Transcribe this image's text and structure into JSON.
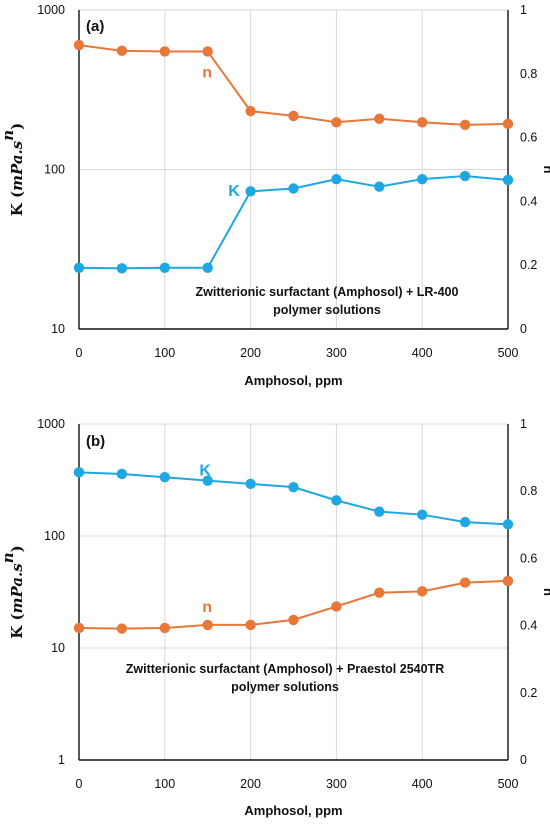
{
  "chart_data": [
    {
      "type": "line",
      "panel_label": "(a)",
      "x": [
        0,
        50,
        100,
        150,
        200,
        250,
        300,
        350,
        400,
        450,
        500
      ],
      "xlabel": "Amphosol, ppm",
      "xticks": [
        "0",
        "100",
        "200",
        "300",
        "400",
        "500"
      ],
      "xlim": [
        0,
        500
      ],
      "ylabel": {
        "prefix": "K (",
        "math": "mPa.s",
        "sup": "n",
        "suffix": ")"
      },
      "ylim": [
        10,
        1000
      ],
      "yscale": "log",
      "yticks": [
        "10",
        "100",
        "1000"
      ],
      "y2label": "n",
      "y2lim": [
        0,
        1
      ],
      "y2ticks": [
        "0",
        "0.2",
        "0.4",
        "0.6",
        "0.8",
        "1"
      ],
      "grid": true,
      "annotation": [
        "Zwitterionic surfactant (Amphosol) + LR-400",
        "polymer solutions"
      ],
      "series": [
        {
          "name": "K",
          "axis": "left",
          "color": "#1ea7e0",
          "values": [
            24.2,
            24.0,
            24.2,
            24.2,
            73,
            76,
            87,
            78,
            87,
            91,
            86
          ]
        },
        {
          "name": "n",
          "axis": "right",
          "color": "#e8773a",
          "values": [
            0.89,
            0.872,
            0.87,
            0.87,
            0.683,
            0.668,
            0.648,
            0.659,
            0.648,
            0.64,
            0.643
          ]
        }
      ]
    },
    {
      "type": "line",
      "panel_label": "(b)",
      "x": [
        0,
        50,
        100,
        150,
        200,
        250,
        300,
        350,
        400,
        450,
        500
      ],
      "xlabel": "Amphosol, ppm",
      "xticks": [
        "0",
        "100",
        "200",
        "300",
        "400",
        "500"
      ],
      "xlim": [
        0,
        500
      ],
      "ylabel": {
        "prefix": "K (",
        "math": "mPa.s",
        "sup": "n",
        "suffix": ")"
      },
      "ylim": [
        1,
        1000
      ],
      "yscale": "log",
      "yticks": [
        "1",
        "10",
        "100",
        "1000"
      ],
      "y2label": "n",
      "y2lim": [
        0,
        1
      ],
      "y2ticks": [
        "0",
        "0.2",
        "0.4",
        "0.6",
        "0.8",
        "1"
      ],
      "grid": true,
      "annotation": [
        "Zwitterionic surfactant (Amphosol) + Praestol 2540TR",
        "polymer solutions"
      ],
      "series": [
        {
          "name": "K",
          "axis": "left",
          "color": "#1ea7e0",
          "values": [
            370,
            358,
            335,
            312,
            292,
            273,
            208,
            165,
            155,
            133,
            127
          ]
        },
        {
          "name": "n",
          "axis": "right",
          "color": "#e8773a",
          "values": [
            0.393,
            0.391,
            0.393,
            0.402,
            0.402,
            0.417,
            0.457,
            0.498,
            0.502,
            0.528,
            0.533
          ]
        }
      ]
    }
  ]
}
